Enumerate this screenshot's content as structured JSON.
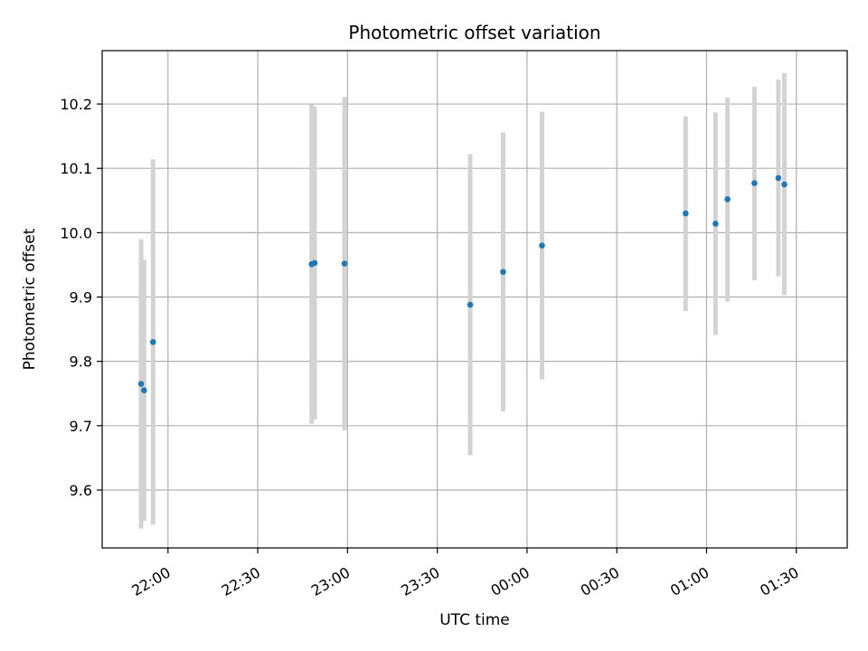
{
  "chart_data": {
    "type": "scatter",
    "title": "Photometric offset variation",
    "xlabel": "UTC time",
    "ylabel": "Photometric offset",
    "grid": true,
    "legend": "none",
    "x_unit": "UTC time (HH:MM), spanning midnight",
    "xlim": [
      "21:38",
      "01:47"
    ],
    "ylim": [
      9.51,
      10.283
    ],
    "x_ticks": [
      "22:00",
      "22:30",
      "23:00",
      "23:30",
      "00:00",
      "00:30",
      "01:00",
      "01:30"
    ],
    "y_ticks": [
      "9.6",
      "9.7",
      "9.8",
      "9.9",
      "10.0",
      "10.1",
      "10.2"
    ],
    "colors": {
      "point": "#1f77b4",
      "errorbar": "#d3d3d3",
      "grid": "#b0b0b0"
    },
    "points": [
      {
        "x": "21:51",
        "y": 9.765,
        "ylow": 9.54,
        "yhigh": 9.99
      },
      {
        "x": "21:52",
        "y": 9.755,
        "ylow": 9.552,
        "yhigh": 9.958
      },
      {
        "x": "21:55",
        "y": 9.83,
        "ylow": 9.546,
        "yhigh": 10.114
      },
      {
        "x": "22:48",
        "y": 9.951,
        "ylow": 9.703,
        "yhigh": 10.199
      },
      {
        "x": "22:49",
        "y": 9.953,
        "ylow": 9.71,
        "yhigh": 10.196
      },
      {
        "x": "22:59",
        "y": 9.952,
        "ylow": 9.693,
        "yhigh": 10.211
      },
      {
        "x": "23:41",
        "y": 9.888,
        "ylow": 9.654,
        "yhigh": 10.122
      },
      {
        "x": "23:52",
        "y": 9.939,
        "ylow": 9.722,
        "yhigh": 10.156
      },
      {
        "x": "00:05",
        "y": 9.98,
        "ylow": 9.772,
        "yhigh": 10.188
      },
      {
        "x": "00:53",
        "y": 10.03,
        "ylow": 9.878,
        "yhigh": 10.181
      },
      {
        "x": "01:03",
        "y": 10.014,
        "ylow": 9.841,
        "yhigh": 10.187
      },
      {
        "x": "01:07",
        "y": 10.052,
        "ylow": 9.893,
        "yhigh": 10.21
      },
      {
        "x": "01:16",
        "y": 10.077,
        "ylow": 9.926,
        "yhigh": 10.227
      },
      {
        "x": "01:24",
        "y": 10.085,
        "ylow": 9.932,
        "yhigh": 10.238
      },
      {
        "x": "01:26",
        "y": 10.075,
        "ylow": 9.903,
        "yhigh": 10.248
      }
    ]
  }
}
